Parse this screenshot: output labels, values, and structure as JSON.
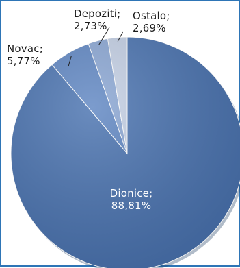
{
  "chart_data": {
    "type": "pie",
    "title": "",
    "slices": [
      {
        "label": "Dionice",
        "value": 88.81,
        "display": "88,81%",
        "color": "#4a73b0"
      },
      {
        "label": "Novac",
        "value": 5.77,
        "display": "5,77%",
        "color": "#5f86c2"
      },
      {
        "label": "Depoziti",
        "value": 2.73,
        "display": "2,73%",
        "color": "#8aa6d3"
      },
      {
        "label": "Ostalo",
        "value": 2.69,
        "display": "2,69%",
        "color": "#c3cfe4"
      }
    ],
    "legend": "none",
    "data_labels": "category; percentage"
  }
}
